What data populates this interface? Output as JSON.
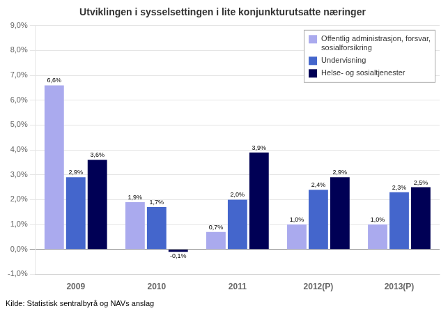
{
  "chart_data": {
    "type": "bar",
    "title": "Utviklingen i sysselsettingen i lite konjunkturutsatte næringer",
    "categories": [
      "2009",
      "2010",
      "2011",
      "2012(P)",
      "2013(P)"
    ],
    "series": [
      {
        "name": "Offentlig administrasjon, forsvar,\nsosialforsikring",
        "color": "#AAAAEE",
        "values": [
          6.6,
          1.9,
          0.7,
          1.0,
          1.0
        ],
        "value_labels": [
          "6,6%",
          "1,9%",
          "0,7%",
          "1,0%",
          "1,0%"
        ]
      },
      {
        "name": "Undervisning",
        "color": "#4466CC",
        "values": [
          2.9,
          1.7,
          2.0,
          2.4,
          2.3
        ],
        "value_labels": [
          "2,9%",
          "1,7%",
          "2,0%",
          "2,4%",
          "2,3%"
        ]
      },
      {
        "name": "Helse- og sosialtjenester",
        "color": "#000055",
        "values": [
          3.6,
          -0.1,
          3.9,
          2.9,
          2.5
        ],
        "value_labels": [
          "3,6%",
          "-0,1%",
          "3,9%",
          "2,9%",
          "2,5%"
        ]
      }
    ],
    "ylim": [
      -1.0,
      9.0
    ],
    "yticks": [
      {
        "value": -1.0,
        "label": "-1,0%"
      },
      {
        "value": 0.0,
        "label": "0,0%"
      },
      {
        "value": 1.0,
        "label": "1,0%"
      },
      {
        "value": 2.0,
        "label": "2,0%"
      },
      {
        "value": 3.0,
        "label": "3,0%"
      },
      {
        "value": 4.0,
        "label": "4,0%"
      },
      {
        "value": 5.0,
        "label": "5,0%"
      },
      {
        "value": 6.0,
        "label": "6,0%"
      },
      {
        "value": 7.0,
        "label": "7,0%"
      },
      {
        "value": 8.0,
        "label": "8,0%"
      },
      {
        "value": 9.0,
        "label": "9,0%"
      }
    ],
    "grid": true,
    "legend": "upper right",
    "data_labels": true,
    "annotations": [
      "Kilde: Statistisk sentralbyrå og NAVs anslag"
    ]
  }
}
